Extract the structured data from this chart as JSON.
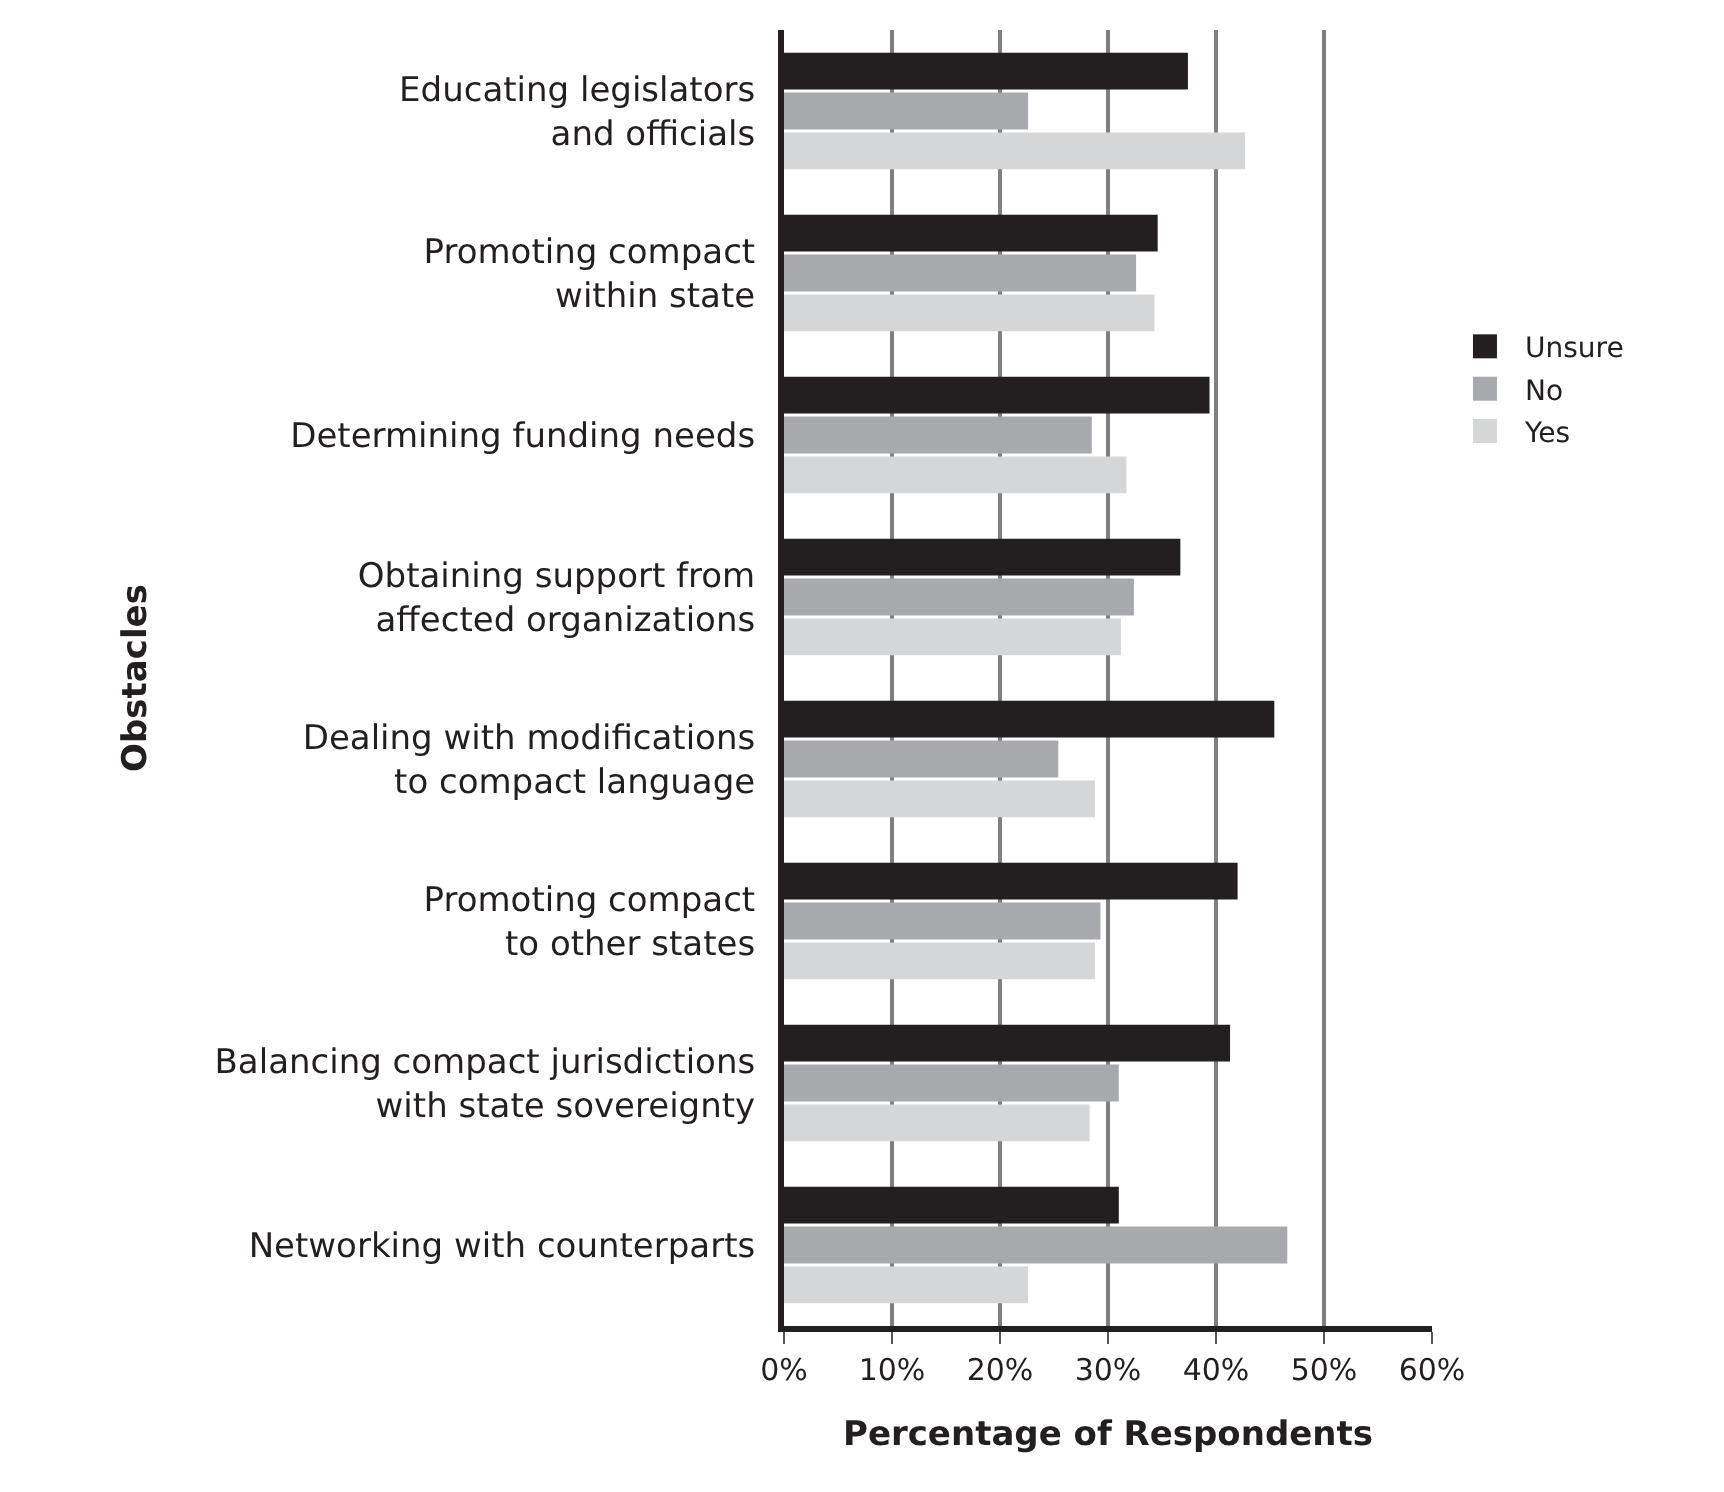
{
  "chart_data": {
    "type": "bar",
    "orientation": "horizontal",
    "xlabel": "Percentage of Respondents",
    "ylabel": "Obstacles",
    "categories": [
      "Educating legislators\nand officials",
      "Promoting compact\nwithin state",
      "Determining funding needs",
      "Obtaining support from\naffected organizations",
      "Dealing with modifications\nto compact language",
      "Promoting compact\nto other states",
      "Balancing compact jurisdictions\nwith state sovereignty",
      "Networking with counterparts"
    ],
    "series": [
      {
        "name": "Unsure",
        "color": "#231f20",
        "values": [
          37.4,
          34.6,
          39.4,
          36.7,
          45.4,
          42.0,
          41.3,
          31.0
        ]
      },
      {
        "name": "No",
        "color": "#a8a9ac",
        "values": [
          22.6,
          32.6,
          28.5,
          32.4,
          25.4,
          29.3,
          31.0,
          46.6
        ]
      },
      {
        "name": "Yes",
        "color": "#d5d6d8",
        "values": [
          42.7,
          34.3,
          31.7,
          31.2,
          28.8,
          28.8,
          28.3,
          22.6
        ]
      }
    ],
    "xlim": [
      0,
      60
    ],
    "xticks": [
      {
        "value": 0,
        "label": "0%"
      },
      {
        "value": 10,
        "label": "10%"
      },
      {
        "value": 20,
        "label": "20%"
      },
      {
        "value": 30,
        "label": "30%"
      },
      {
        "value": 40,
        "label": "40%"
      },
      {
        "value": 50,
        "label": "50%"
      },
      {
        "value": 60,
        "label": "60%"
      }
    ],
    "grid": "x",
    "legend": "right"
  }
}
